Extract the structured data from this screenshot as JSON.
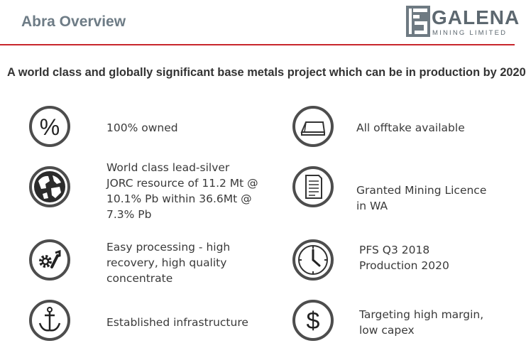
{
  "header": {
    "title": "Abra Overview",
    "logo_name": "GALENA",
    "logo_sub": "MINING LIMITED"
  },
  "headline": "A world class and globally significant base metals project which can be in production by 2020",
  "colors": {
    "accent_red": "#c8262c",
    "icon_ring": "#4d4d4d",
    "title_grey": "#6e7c86"
  },
  "features": [
    {
      "icon": "percent-icon",
      "text": "100% owned"
    },
    {
      "icon": "globe-icon",
      "lines": [
        "World class lead-silver",
        "JORC resource of 11.2 Mt @",
        "10.1% Pb within 36.6Mt @",
        "7.3% Pb"
      ]
    },
    {
      "icon": "gear-wrench-icon",
      "lines": [
        "Easy processing - high",
        "recovery, high quality",
        "concentrate"
      ]
    },
    {
      "icon": "anchor-icon",
      "text": "Established infrastructure"
    },
    {
      "icon": "ingot-icon",
      "text": "All offtake available"
    },
    {
      "icon": "document-icon",
      "lines": [
        "Granted Mining Licence",
        "in WA"
      ]
    },
    {
      "icon": "clock-icon",
      "lines": [
        "PFS Q3 2018",
        "Production 2020"
      ]
    },
    {
      "icon": "dollar-icon",
      "lines": [
        "Targeting high margin,",
        "low capex"
      ]
    }
  ]
}
